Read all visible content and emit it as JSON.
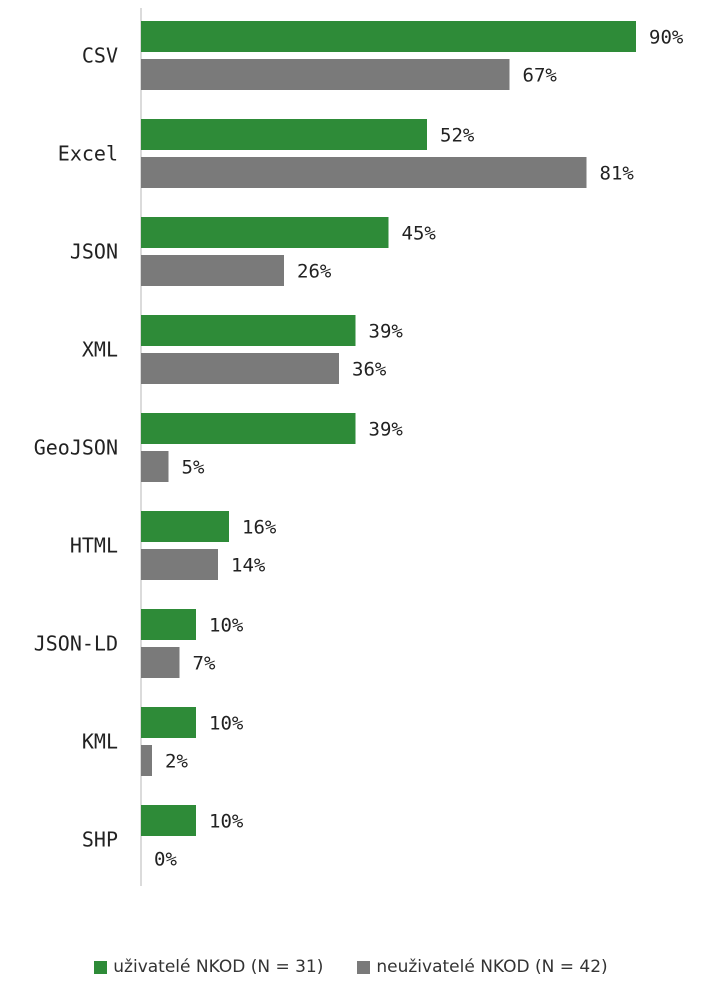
{
  "chart_data": {
    "type": "bar",
    "orientation": "horizontal",
    "categories": [
      "CSV",
      "Excel",
      "JSON",
      "XML",
      "GeoJSON",
      "HTML",
      "JSON-LD",
      "KML",
      "SHP"
    ],
    "series": [
      {
        "name": "uživatelé NKOD (N = 31)",
        "color": "#2e8b38",
        "values": [
          90,
          52,
          45,
          39,
          39,
          16,
          10,
          10,
          10
        ],
        "labels": [
          "90%",
          "52%",
          "45%",
          "39%",
          "39%",
          "16%",
          "10%",
          "10%",
          "10%"
        ]
      },
      {
        "name": "neuživatelé NKOD (N = 42)",
        "color": "#7a7a7a",
        "values": [
          67,
          81,
          26,
          36,
          5,
          14,
          7,
          2,
          0
        ],
        "labels": [
          "67%",
          "81%",
          "26%",
          "36%",
          "5%",
          "14%",
          "7%",
          "2%",
          "0%"
        ]
      }
    ],
    "xlim": [
      0,
      100
    ],
    "unit": "%",
    "grid": false,
    "legend_position": "bottom"
  }
}
